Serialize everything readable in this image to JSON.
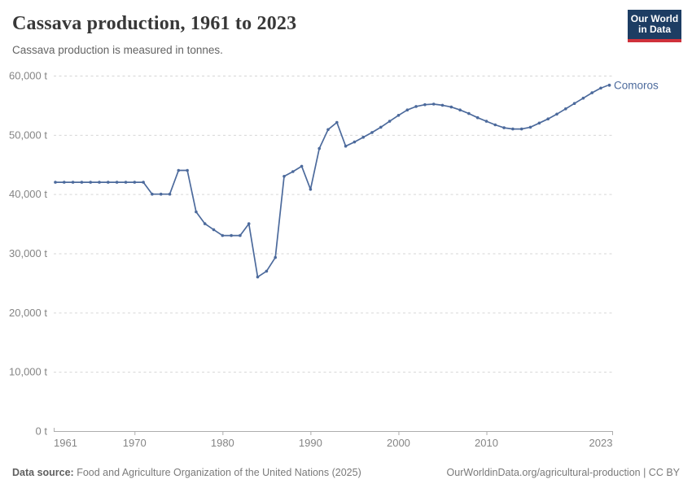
{
  "header": {
    "title": "Cassava production, 1961 to 2023",
    "subtitle": "Cassava production is measured in tonnes.",
    "logo": {
      "line1": "Our World",
      "line2": "in Data"
    }
  },
  "chart_data": {
    "type": "line",
    "title": "Cassava production, 1961 to 2023",
    "unit": "tonnes",
    "xlim": [
      1961,
      2023
    ],
    "ylim": [
      0,
      60000
    ],
    "x_ticks": [
      1961,
      1970,
      1980,
      1990,
      2000,
      2010,
      2023
    ],
    "y_ticks": [
      0,
      10000,
      20000,
      30000,
      40000,
      50000,
      60000
    ],
    "y_tick_suffix": " t",
    "grid": "horizontal-dashed",
    "legend_position": "end-of-line-label",
    "colors": {
      "line": "#4C6A9C",
      "gridline": "#d6d6d6",
      "axis": "#adadad",
      "tick_label": "#858585"
    },
    "series": [
      {
        "name": "Comoros",
        "color": "#4C6A9C",
        "years": [
          1961,
          1962,
          1963,
          1964,
          1965,
          1966,
          1967,
          1968,
          1969,
          1970,
          1971,
          1972,
          1973,
          1974,
          1975,
          1976,
          1977,
          1978,
          1979,
          1980,
          1981,
          1982,
          1983,
          1984,
          1985,
          1986,
          1987,
          1988,
          1989,
          1990,
          1991,
          1992,
          1993,
          1994,
          1995,
          1996,
          1997,
          1998,
          1999,
          2000,
          2001,
          2002,
          2003,
          2004,
          2005,
          2006,
          2007,
          2008,
          2009,
          2010,
          2011,
          2012,
          2013,
          2014,
          2015,
          2016,
          2017,
          2018,
          2019,
          2020,
          2021,
          2022,
          2023
        ],
        "values": [
          42000,
          42000,
          42000,
          42000,
          42000,
          42000,
          42000,
          42000,
          42000,
          42000,
          42000,
          40000,
          40000,
          40000,
          44000,
          44000,
          37000,
          35000,
          34000,
          33000,
          33000,
          33000,
          35000,
          26000,
          27000,
          29300,
          43000,
          43800,
          44700,
          40800,
          47700,
          50900,
          52100,
          48100,
          48800,
          49600,
          50400,
          51300,
          52300,
          53300,
          54200,
          54800,
          55100,
          55200,
          55000,
          54700,
          54200,
          53600,
          52900,
          52300,
          51700,
          51200,
          51000,
          51000,
          51300,
          52000,
          52700,
          53500,
          54400,
          55300,
          56200,
          57100,
          57900
        ]
      }
    ]
  },
  "footer": {
    "source_label": "Data source:",
    "source_text": "Food and Agriculture Organization of the United Nations (2025)",
    "credit": "OurWorldinData.org/agricultural-production | CC BY"
  }
}
